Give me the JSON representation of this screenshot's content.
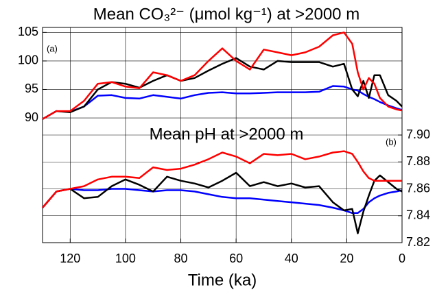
{
  "chart_data": [
    {
      "type": "line",
      "title": "Mean CO₃²⁻ (μmol kg⁻¹) at >2000 m",
      "panel_label": "(a)",
      "x": [
        130,
        125,
        120,
        115,
        110,
        105,
        100,
        95,
        90,
        85,
        80,
        75,
        70,
        65,
        60,
        55,
        50,
        45,
        40,
        35,
        30,
        25,
        21,
        18,
        16,
        14,
        12,
        10,
        8,
        5,
        2,
        0
      ],
      "xlim": [
        130,
        0
      ],
      "ylim": [
        87,
        106
      ],
      "yticks": [
        90,
        95,
        100,
        105
      ],
      "grid": true,
      "series": [
        {
          "color": "#0000ff",
          "values": [
            89.8,
            91.2,
            91.1,
            92,
            93.9,
            94,
            93.5,
            93.4,
            94,
            93.7,
            93.4,
            94,
            94.4,
            94.5,
            94.3,
            94.3,
            94.4,
            94.5,
            94.5,
            94.5,
            94.6,
            95.6,
            95.5,
            95,
            94.8,
            94.2,
            93.7,
            93.3,
            92.8,
            92.2,
            91.7,
            91.4
          ]
        },
        {
          "color": "#000000",
          "values": [
            89.8,
            91.2,
            91,
            92,
            95,
            96.3,
            96,
            95.3,
            96.5,
            97.5,
            96.5,
            97,
            98.3,
            99.5,
            100.5,
            99,
            98.5,
            100,
            99.8,
            99.8,
            99.8,
            99,
            99.5,
            95,
            93.8,
            96.5,
            93.5,
            97.5,
            97.5,
            94,
            93,
            92
          ]
        },
        {
          "color": "#ff0000",
          "values": [
            89.8,
            91.2,
            91.2,
            93,
            96,
            96.3,
            95.5,
            95.2,
            98,
            97.5,
            96.5,
            97.5,
            100,
            102.2,
            100,
            98.5,
            102,
            101.5,
            101,
            101.5,
            102.5,
            104.5,
            105,
            103,
            98,
            95,
            97,
            96,
            93.5,
            92,
            91.5,
            91.3
          ]
        }
      ]
    },
    {
      "type": "line",
      "title": "Mean pH at >2000 m",
      "panel_label": "(b)",
      "xlabel": "Time (ka)",
      "x": [
        130,
        125,
        120,
        115,
        110,
        105,
        100,
        95,
        90,
        85,
        80,
        75,
        70,
        65,
        60,
        55,
        50,
        45,
        40,
        35,
        30,
        25,
        21,
        18,
        16,
        14,
        12,
        10,
        8,
        5,
        2,
        0
      ],
      "xlim": [
        130,
        0
      ],
      "xticks": [
        120,
        100,
        80,
        60,
        40,
        20,
        0
      ],
      "ylim": [
        7.82,
        7.9
      ],
      "yticks": [
        7.82,
        7.84,
        7.86,
        7.88,
        {
          "value": 7.9,
          "label": "7.90"
        }
      ],
      "grid": true,
      "series": [
        {
          "color": "#0000ff",
          "values": [
            7.846,
            7.858,
            7.86,
            7.859,
            7.859,
            7.86,
            7.86,
            7.859,
            7.858,
            7.859,
            7.859,
            7.858,
            7.856,
            7.854,
            7.853,
            7.853,
            7.852,
            7.851,
            7.85,
            7.849,
            7.848,
            7.846,
            7.844,
            7.842,
            7.842,
            7.845,
            7.85,
            7.853,
            7.855,
            7.857,
            7.858,
            7.859
          ]
        },
        {
          "color": "#000000",
          "values": [
            7.846,
            7.858,
            7.86,
            7.853,
            7.854,
            7.862,
            7.867,
            7.863,
            7.858,
            7.869,
            7.866,
            7.864,
            7.861,
            7.866,
            7.872,
            7.862,
            7.865,
            7.862,
            7.864,
            7.861,
            7.862,
            7.85,
            7.844,
            7.845,
            7.827,
            7.843,
            7.855,
            7.866,
            7.87,
            7.865,
            7.86,
            7.858
          ]
        },
        {
          "color": "#ff0000",
          "values": [
            7.846,
            7.858,
            7.86,
            7.862,
            7.867,
            7.869,
            7.869,
            7.868,
            7.876,
            7.874,
            7.875,
            7.878,
            7.882,
            7.887,
            7.884,
            7.879,
            7.886,
            7.885,
            7.886,
            7.882,
            7.884,
            7.887,
            7.888,
            7.886,
            7.88,
            7.873,
            7.868,
            7.866,
            7.866,
            7.866,
            7.866,
            7.866
          ]
        }
      ]
    }
  ]
}
